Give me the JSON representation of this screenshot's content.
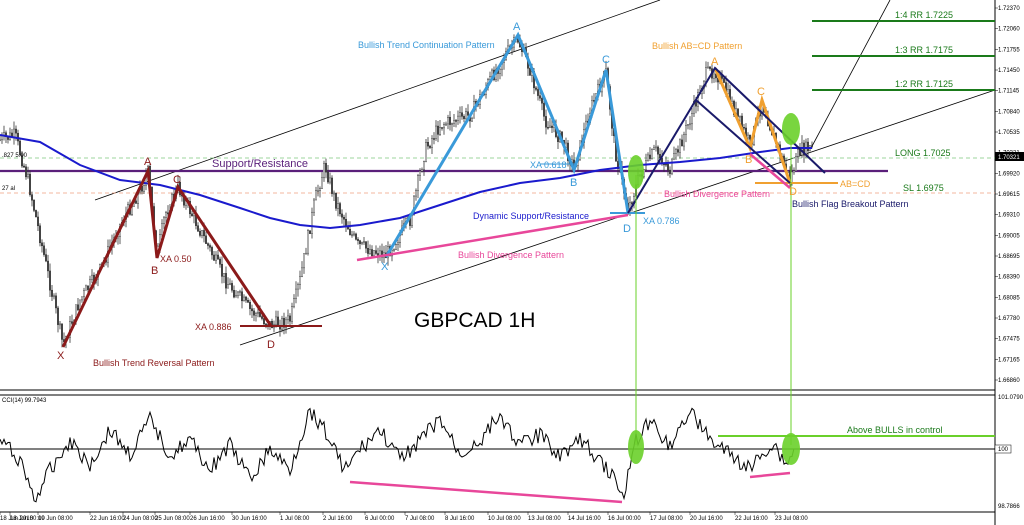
{
  "chart_data": {
    "type": "line",
    "title": "GBPCAD 1H",
    "y_axis_ticks": [
      "1.72370",
      "1.72060",
      "1.71755",
      "1.71450",
      "1.71145",
      "1.70840",
      "1.70535",
      "1.70321",
      "1.69920",
      "1.69615",
      "1.69310",
      "1.69005",
      "1.68695",
      "1.68390",
      "1.68085",
      "1.67780",
      "1.67475",
      "1.67165",
      "1.66860"
    ],
    "current_price": "1.70321",
    "ylim": [
      1.6686,
      1.7237
    ],
    "x_axis_ticks": [
      "18 Jun 2018",
      "18 Jun 00:00",
      "19 Jun 08:00",
      "22 Jun 16:00",
      "24 Jun 08:00",
      "25 Jun 08:00",
      "26 Jun 16:00",
      "30 Jun 16:00",
      "1 Jul 08:00",
      "2 Jul 16:00",
      "6 Jul 00:00",
      "7 Jul 08:00",
      "8 Jul 16:00",
      "10 Jul 08:00",
      "13 Jul 08:00",
      "14 Jul 16:00",
      "16 Jul 00:00",
      "17 Jul 08:00",
      "20 Jul 16:00",
      "22 Jul 16:00",
      "23 Jul 08:00"
    ],
    "price_pivots": [
      {
        "label": "X",
        "price": 1.6755
      },
      {
        "label": "A",
        "price": 1.6995
      },
      {
        "label": "B",
        "price": 1.6885
      },
      {
        "label": "C",
        "price": 1.6985
      },
      {
        "label": "D",
        "price": 1.6785
      },
      {
        "label": "X",
        "price": 1.69
      },
      {
        "label": "A",
        "price": 1.722
      },
      {
        "label": "B",
        "price": 1.7005
      },
      {
        "label": "C",
        "price": 1.7145
      },
      {
        "label": "D",
        "price": 1.696
      },
      {
        "label": "A",
        "price": 1.7145
      },
      {
        "label": "B",
        "price": 1.703
      },
      {
        "label": "C",
        "price": 1.71
      },
      {
        "label": "D",
        "price": 1.698
      }
    ],
    "levels": [
      {
        "label": "1:4 RR 1.7225",
        "price": 1.7225,
        "color": "#1a7a1a"
      },
      {
        "label": "1:3 RR 1.7175",
        "price": 1.7175,
        "color": "#1a7a1a"
      },
      {
        "label": "1:2 RR 1.7125",
        "price": 1.7125,
        "color": "#1a7a1a"
      },
      {
        "label": "LONG 1.7025",
        "price": 1.7025,
        "color": "#7dc87d"
      },
      {
        "label": "SL 1.6975",
        "price": 1.6975,
        "color": "#f0a080"
      }
    ],
    "indicator": {
      "name": "CCI(14) 99.7943",
      "ticks": [
        "101.0790",
        "100",
        "98.7866"
      ],
      "levels": [
        {
          "label": "Above BULLS in control",
          "value": 100.3
        }
      ]
    }
  },
  "annotations": {
    "trend_continuation": "Bullish Trend Continuation Pattern",
    "trend_reversal": "Bullish Trend Reversal Pattern",
    "abcd": "Bullish AB=CD Pattern",
    "abcd_label": "AB=CD",
    "support_resistance": "Support/Resistance",
    "dynamic_sr": "Dynamic Support/Resistance",
    "divergence_1": "Bullish Divergence Pattern",
    "divergence_2": "Bullish Divergence Pattern",
    "flag_breakout": "Bullish Flag Breakout Pattern",
    "xa_050": "XA 0.50",
    "xa_0886": "XA 0.886",
    "xa_0618": "XA 0.618",
    "xa_0786": "XA 0.786",
    "left_axis_1": ".827 5.00",
    "left_axis_2": "27 al"
  },
  "colors": {
    "maroon": "#8b1a1a",
    "light_blue": "#3a9ad9",
    "orange": "#f0a030",
    "purple": "#5a1f7a",
    "navy": "#1a1a6a",
    "magenta": "#e8479a",
    "ma_blue": "#1a1acd",
    "green_levels": "#1a7a1a",
    "highlight_green": "#6ad02a"
  }
}
